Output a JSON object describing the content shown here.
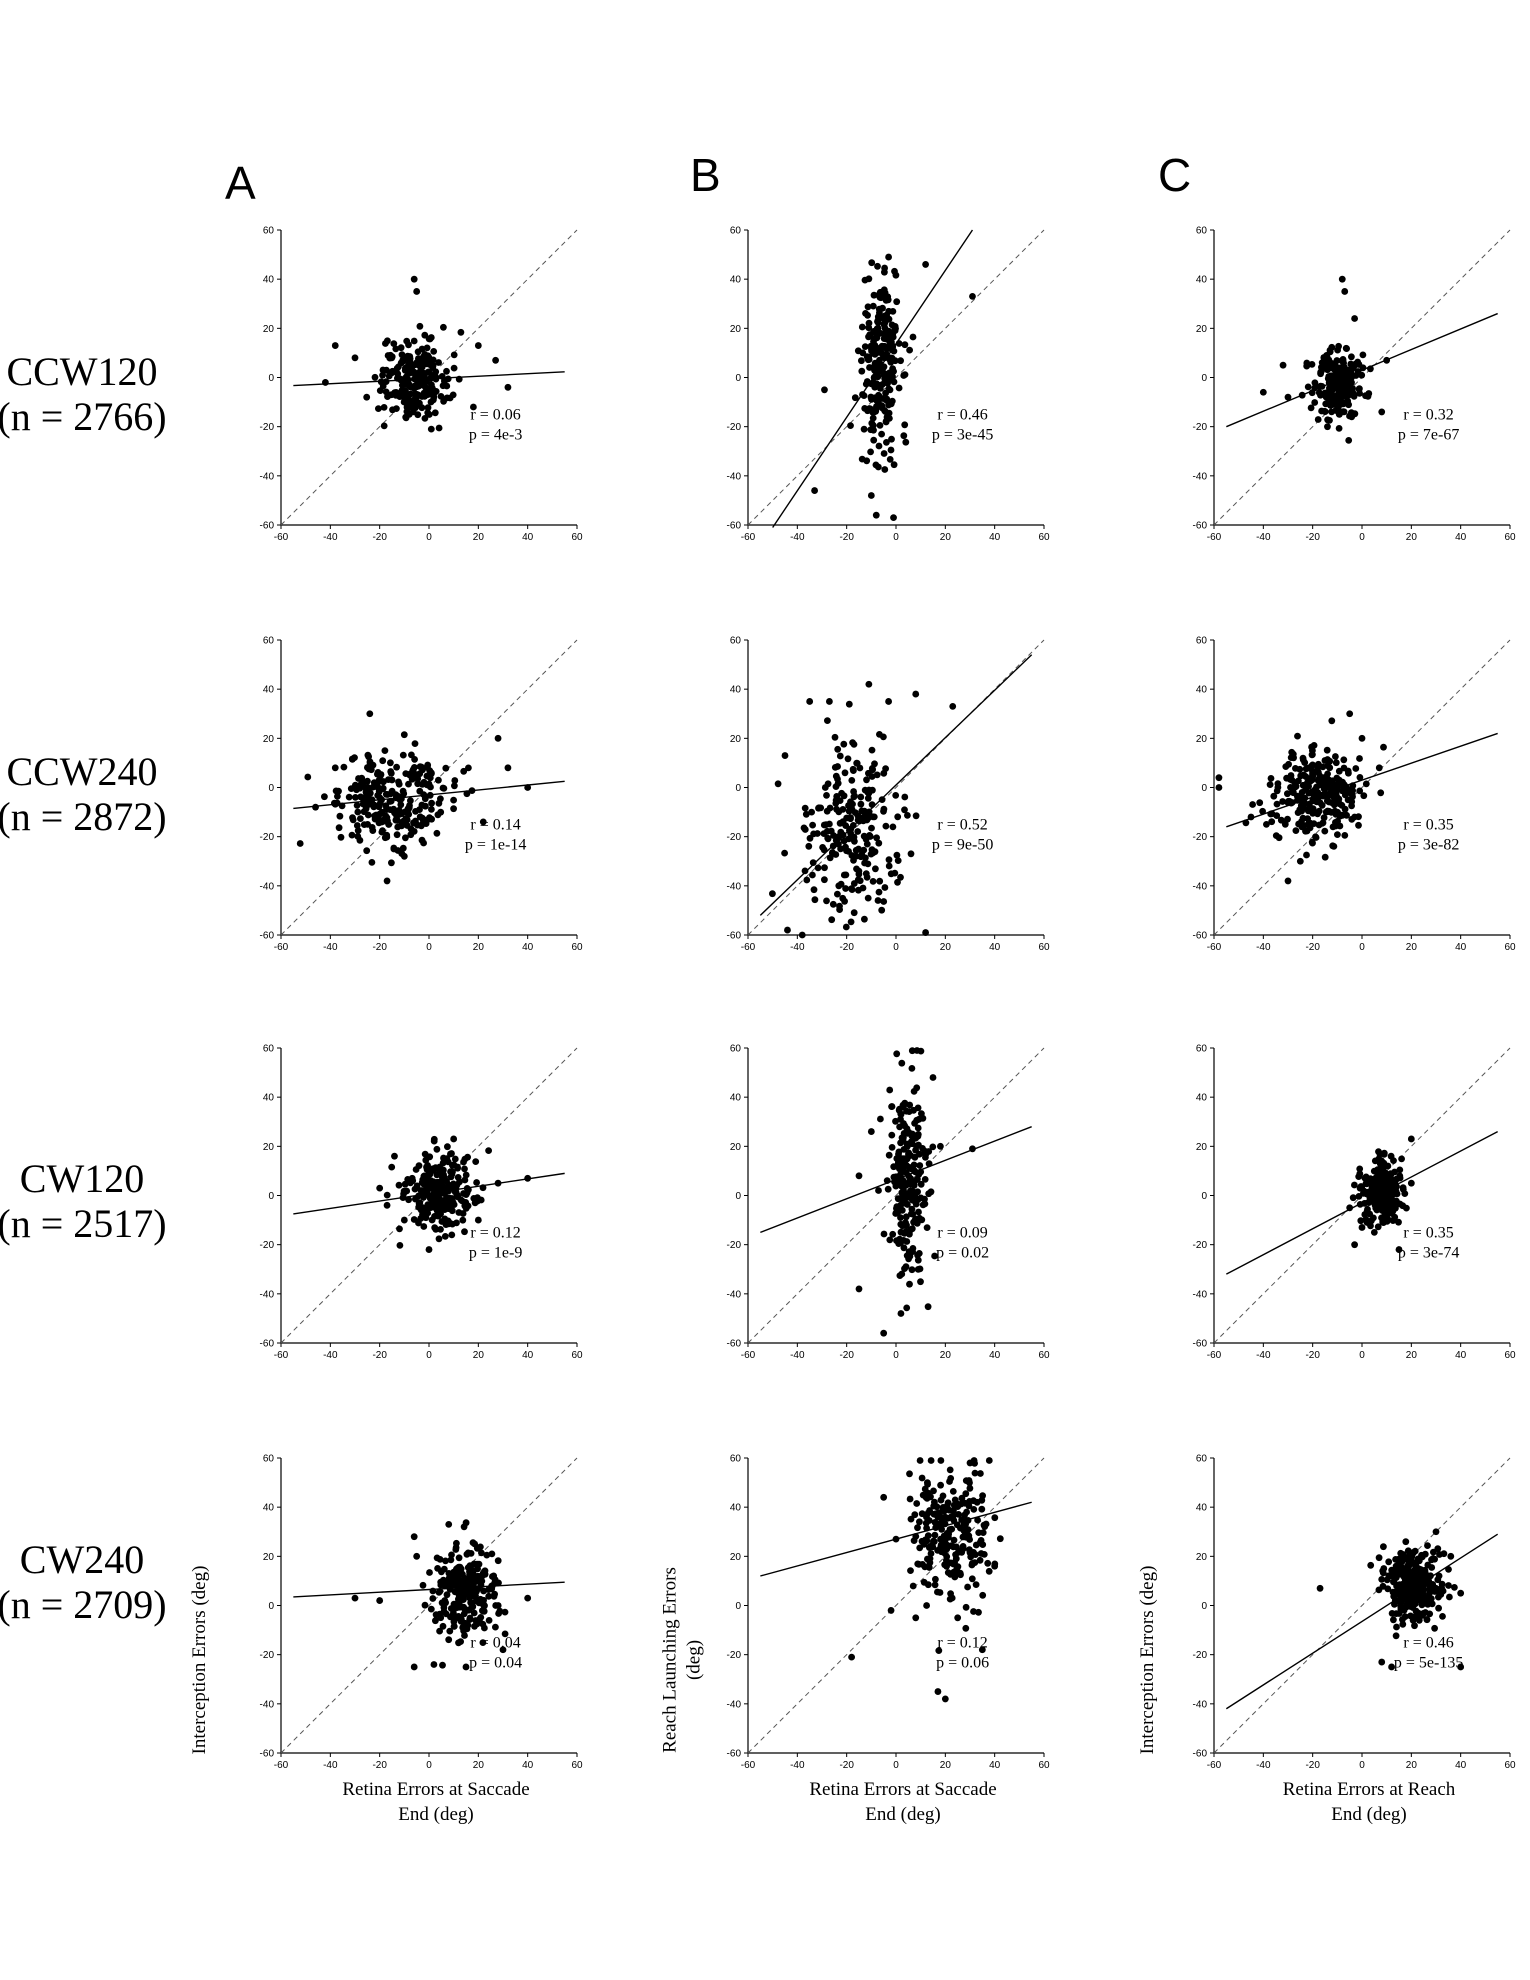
{
  "columns": [
    "A",
    "B",
    "C"
  ],
  "rows": [
    {
      "name": "CCW120",
      "n": "(n = 2766)"
    },
    {
      "name": "CCW240",
      "n": "(n = 2872)"
    },
    {
      "name": "CW120",
      "n": "(n = 2517)"
    },
    {
      "name": "CW240",
      "n": "(n = 2709)"
    }
  ],
  "axis_labels": {
    "col_a_x": [
      "Retina Errors at Saccade",
      "End (deg)"
    ],
    "col_b_x": [
      "Retina Errors at Saccade",
      "End (deg)"
    ],
    "col_c_x": [
      "Retina Errors at Reach",
      "End (deg)"
    ],
    "col_a_y": [
      "Interception Errors (deg)"
    ],
    "col_b_y": [
      "Reach Launching Errors",
      "(deg)"
    ],
    "col_c_y": [
      "Interception Errors (deg)"
    ]
  },
  "chart_data": [
    {
      "type": "scatter",
      "panel": "A-CCW120",
      "xlim": [
        -60,
        60
      ],
      "ylim": [
        -60,
        60
      ],
      "ticks": [
        -60,
        -40,
        -20,
        0,
        20,
        40,
        60
      ],
      "reference": "y = x (dashed)",
      "fit": {
        "x": [
          -55,
          55
        ],
        "y": [
          -3.3,
          2.3
        ]
      },
      "annotation": [
        "r = 0.06",
        "p = 4e-3"
      ],
      "cloud": {
        "cx": -6,
        "cy": -1,
        "sx": 7,
        "sy": 8,
        "n": 230
      },
      "outliers": [
        [
          -6,
          40
        ],
        [
          -5,
          35
        ],
        [
          -42,
          -2
        ],
        [
          -38,
          13
        ],
        [
          32,
          -4
        ],
        [
          27,
          7
        ],
        [
          -30,
          8
        ],
        [
          18,
          -12
        ],
        [
          20,
          13
        ]
      ]
    },
    {
      "type": "scatter",
      "panel": "B-CCW120",
      "xlim": [
        -60,
        60
      ],
      "ylim": [
        -60,
        60
      ],
      "ticks": [
        -60,
        -40,
        -20,
        0,
        20,
        40,
        60
      ],
      "reference": "y = x (dashed)",
      "fit": {
        "x": [
          -50,
          31
        ],
        "y": [
          -61,
          60
        ]
      },
      "annotation": [
        "r = 0.46",
        "p = 3e-45"
      ],
      "cloud": {
        "cx": -6,
        "cy": 6,
        "sx": 4,
        "sy": 18,
        "n": 240
      },
      "outliers": [
        [
          -3,
          49
        ],
        [
          -29,
          -5
        ],
        [
          -33,
          -46
        ],
        [
          -1,
          -57
        ],
        [
          31,
          33
        ],
        [
          12,
          46
        ],
        [
          -8,
          -56
        ],
        [
          -10,
          -48
        ]
      ]
    },
    {
      "type": "scatter",
      "panel": "C-CCW120",
      "xlim": [
        -60,
        60
      ],
      "ylim": [
        -60,
        60
      ],
      "ticks": [
        -60,
        -40,
        -20,
        0,
        20,
        40,
        60
      ],
      "reference": "y = x (dashed)",
      "fit": {
        "x": [
          -55,
          55
        ],
        "y": [
          -20,
          26
        ]
      },
      "annotation": [
        "r = 0.32",
        "p = 7e-67"
      ],
      "cloud": {
        "cx": -10,
        "cy": -2,
        "sx": 5,
        "sy": 7,
        "n": 230
      },
      "outliers": [
        [
          -8,
          40
        ],
        [
          -7,
          35
        ],
        [
          -40,
          -6
        ],
        [
          -32,
          5
        ],
        [
          10,
          7
        ],
        [
          8,
          -14
        ],
        [
          -14,
          -20
        ],
        [
          -3,
          24
        ],
        [
          -30,
          -8
        ]
      ]
    },
    {
      "type": "scatter",
      "panel": "A-CCW240",
      "xlim": [
        -60,
        60
      ],
      "ylim": [
        -60,
        60
      ],
      "ticks": [
        -60,
        -40,
        -20,
        0,
        20,
        40,
        60
      ],
      "reference": "y = x (dashed)",
      "fit": {
        "x": [
          -55,
          55
        ],
        "y": [
          -8.5,
          2.5
        ]
      },
      "annotation": [
        "r = 0.14",
        "p = 1e-14"
      ],
      "cloud": {
        "cx": -14,
        "cy": -4,
        "sx": 12,
        "sy": 10,
        "n": 260
      },
      "outliers": [
        [
          -24,
          30
        ],
        [
          -17,
          -38
        ],
        [
          28,
          20
        ],
        [
          40,
          0
        ],
        [
          32,
          8
        ],
        [
          -46,
          -8
        ],
        [
          -38,
          8
        ],
        [
          22,
          -14
        ],
        [
          -10,
          -28
        ]
      ]
    },
    {
      "type": "scatter",
      "panel": "B-CCW240",
      "xlim": [
        -60,
        60
      ],
      "ylim": [
        -60,
        60
      ],
      "ticks": [
        -60,
        -40,
        -20,
        0,
        20,
        40,
        60
      ],
      "reference": "y = x (dashed)",
      "fit": {
        "x": [
          -55,
          55
        ],
        "y": [
          -52,
          54
        ]
      },
      "annotation": [
        "r = 0.52",
        "p = 9e-50"
      ],
      "cloud": {
        "cx": -18,
        "cy": -18,
        "sx": 10,
        "sy": 18,
        "n": 230
      },
      "outliers": [
        [
          -11,
          42
        ],
        [
          -35,
          35
        ],
        [
          -27,
          35
        ],
        [
          23,
          33
        ],
        [
          12,
          -59
        ],
        [
          -44,
          -58
        ],
        [
          -38,
          -60
        ],
        [
          -45,
          13
        ],
        [
          8,
          38
        ],
        [
          -3,
          35
        ]
      ]
    },
    {
      "type": "scatter",
      "panel": "C-CCW240",
      "xlim": [
        -60,
        60
      ],
      "ylim": [
        -60,
        60
      ],
      "ticks": [
        -60,
        -40,
        -20,
        0,
        20,
        40,
        60
      ],
      "reference": "y = x (dashed)",
      "fit": {
        "x": [
          -55,
          55
        ],
        "y": [
          -16,
          22
        ]
      },
      "annotation": [
        "r = 0.35",
        "p = 3e-82"
      ],
      "cloud": {
        "cx": -18,
        "cy": -3,
        "sx": 9,
        "sy": 9,
        "n": 260
      },
      "outliers": [
        [
          -5,
          30
        ],
        [
          -58,
          4
        ],
        [
          -58,
          0
        ],
        [
          7,
          8
        ],
        [
          0,
          20
        ],
        [
          -45,
          -12
        ],
        [
          -30,
          -38
        ],
        [
          -25,
          -30
        ],
        [
          -3,
          -12
        ]
      ]
    },
    {
      "type": "scatter",
      "panel": "A-CW120",
      "xlim": [
        -60,
        60
      ],
      "ylim": [
        -60,
        60
      ],
      "ticks": [
        -60,
        -40,
        -20,
        0,
        20,
        40,
        60
      ],
      "reference": "y = x (dashed)",
      "fit": {
        "x": [
          -55,
          55
        ],
        "y": [
          -7.5,
          9
        ]
      },
      "annotation": [
        "r = 0.12",
        "p = 1e-9"
      ],
      "cloud": {
        "cx": 5,
        "cy": 1,
        "sx": 7,
        "sy": 8,
        "n": 230
      },
      "outliers": [
        [
          -20,
          3
        ],
        [
          -17,
          -4
        ],
        [
          40,
          7
        ],
        [
          28,
          5
        ],
        [
          -14,
          16
        ],
        [
          10,
          23
        ],
        [
          0,
          -22
        ],
        [
          20,
          -10
        ],
        [
          -10,
          -10
        ]
      ]
    },
    {
      "type": "scatter",
      "panel": "B-CW120",
      "xlim": [
        -60,
        60
      ],
      "ylim": [
        -60,
        60
      ],
      "ticks": [
        -60,
        -40,
        -20,
        0,
        20,
        40,
        60
      ],
      "reference": "y = x (dashed)",
      "fit": {
        "x": [
          -55,
          55
        ],
        "y": [
          -15,
          28
        ]
      },
      "annotation": [
        "r = 0.09",
        "p = 0.02"
      ],
      "cloud": {
        "cx": 5,
        "cy": 5,
        "sx": 4,
        "sy": 20,
        "n": 230
      },
      "outliers": [
        [
          31,
          19
        ],
        [
          -15,
          8
        ],
        [
          -15,
          -38
        ],
        [
          -5,
          -56
        ],
        [
          15,
          48
        ],
        [
          2,
          -48
        ],
        [
          -10,
          26
        ],
        [
          18,
          20
        ]
      ]
    },
    {
      "type": "scatter",
      "panel": "C-CW120",
      "xlim": [
        -60,
        60
      ],
      "ylim": [
        -60,
        60
      ],
      "ticks": [
        -60,
        -40,
        -20,
        0,
        20,
        40,
        60
      ],
      "reference": "y = x (dashed)",
      "fit": {
        "x": [
          -55,
          55
        ],
        "y": [
          -32,
          26
        ]
      },
      "annotation": [
        "r = 0.35",
        "p = 3e-74"
      ],
      "cloud": {
        "cx": 8,
        "cy": 1,
        "sx": 4,
        "sy": 7,
        "n": 230
      },
      "outliers": [
        [
          -3,
          -20
        ],
        [
          0,
          -13
        ],
        [
          15,
          -22
        ],
        [
          20,
          23
        ],
        [
          5,
          -15
        ],
        [
          20,
          5
        ],
        [
          -5,
          -5
        ]
      ]
    },
    {
      "type": "scatter",
      "panel": "A-CW240",
      "xlim": [
        -60,
        60
      ],
      "ylim": [
        -60,
        60
      ],
      "ticks": [
        -60,
        -40,
        -20,
        0,
        20,
        40,
        60
      ],
      "reference": "y = x (dashed)",
      "fit": {
        "x": [
          -55,
          55
        ],
        "y": [
          3.5,
          9.5
        ]
      },
      "annotation": [
        "r = 0.04",
        "p = 0.04"
      ],
      "cloud": {
        "cx": 15,
        "cy": 6,
        "sx": 7,
        "sy": 9,
        "n": 240
      },
      "outliers": [
        [
          -30,
          3
        ],
        [
          -20,
          2
        ],
        [
          -6,
          28
        ],
        [
          -6,
          -25
        ],
        [
          30,
          -18
        ],
        [
          40,
          3
        ],
        [
          8,
          33
        ],
        [
          2,
          -24
        ],
        [
          15,
          -25
        ],
        [
          -5,
          20
        ]
      ]
    },
    {
      "type": "scatter",
      "panel": "B-CW240",
      "xlim": [
        -60,
        60
      ],
      "ylim": [
        -60,
        60
      ],
      "ticks": [
        -60,
        -40,
        -20,
        0,
        20,
        40,
        60
      ],
      "reference": "y = x (dashed)",
      "fit": {
        "x": [
          -55,
          55
        ],
        "y": [
          12,
          42
        ]
      },
      "annotation": [
        "r = 0.12",
        "p = 0.06"
      ],
      "cloud": {
        "cx": 22,
        "cy": 30,
        "sx": 8,
        "sy": 13,
        "n": 230
      },
      "outliers": [
        [
          -18,
          -21
        ],
        [
          -5,
          44
        ],
        [
          0,
          27
        ],
        [
          17,
          -35
        ],
        [
          20,
          -38
        ],
        [
          40,
          16
        ],
        [
          -2,
          -2
        ],
        [
          35,
          -18
        ],
        [
          25,
          -5
        ],
        [
          8,
          -5
        ],
        [
          30,
          58
        ]
      ]
    },
    {
      "type": "scatter",
      "panel": "C-CW240",
      "xlim": [
        -60,
        60
      ],
      "ylim": [
        -60,
        60
      ],
      "ticks": [
        -60,
        -40,
        -20,
        0,
        20,
        40,
        60
      ],
      "reference": "y = x (dashed)",
      "fit": {
        "x": [
          -55,
          55
        ],
        "y": [
          -42,
          29
        ]
      },
      "annotation": [
        "r = 0.46",
        "p = 5e-135"
      ],
      "cloud": {
        "cx": 20,
        "cy": 8,
        "sx": 6,
        "sy": 8,
        "n": 260
      },
      "outliers": [
        [
          -17,
          7
        ],
        [
          40,
          -25
        ],
        [
          12,
          -25
        ],
        [
          40,
          5
        ],
        [
          36,
          20
        ],
        [
          30,
          30
        ],
        [
          8,
          -23
        ]
      ]
    }
  ]
}
